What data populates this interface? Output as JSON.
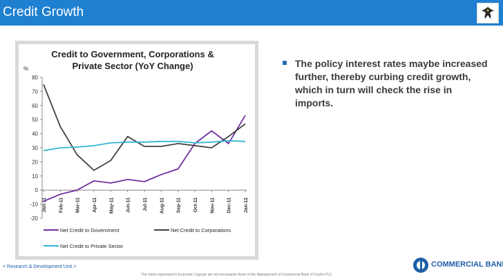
{
  "header": {
    "title": "Credit Growth"
  },
  "bullets": [
    "The policy interest rates maybe increased further, thereby curbing credit growth, which in turn will check the rise in imports."
  ],
  "footer": {
    "unit": "< Research & Development Unit >",
    "disclaimer": "The views expressed in Economic Capsule are not necessarily those of the Management of Commercial Bank of Ceylon PLC",
    "bank_name": "COMMERCIAL BANK"
  },
  "colors": {
    "header_bg": "#1f7fd0",
    "government": "#7030a0",
    "corporations": "#404040",
    "private_sector": "#33b5d1",
    "brand": "#1f5fa8"
  },
  "chart_data": {
    "type": "line",
    "title": "Credit to Government, Corporations & Private Sector (YoY Change)",
    "title_lines": [
      "Credit to Government, Corporations &",
      "Private Sector (YoY Change)"
    ],
    "ylabel": "%",
    "xlabel": "",
    "ylim": [
      -20,
      80
    ],
    "yticks": [
      -20,
      -10,
      0,
      10,
      20,
      30,
      40,
      50,
      60,
      70,
      80
    ],
    "grid": false,
    "legend_position": "bottom",
    "categories": [
      "Jan-11",
      "Feb-11",
      "Mar-11",
      "Apr-11",
      "May-11",
      "Jun-11",
      "Jul-11",
      "Aug-11",
      "Sep-11",
      "Oct-11",
      "Nov-11",
      "Dec-11",
      "Jan-12"
    ],
    "series": [
      {
        "name": "Net Credit to Government",
        "color": "#7030a0",
        "values": [
          -8,
          -3,
          0,
          6.5,
          5,
          7.5,
          6,
          11,
          15,
          33,
          42,
          33,
          53
        ]
      },
      {
        "name": "Net Credit to Corporations",
        "color": "#404040",
        "values": [
          75,
          45,
          25,
          14,
          21,
          38,
          31,
          31,
          33,
          31.5,
          30,
          38,
          47
        ]
      },
      {
        "name": "Net Credit to Private Sector",
        "color": "#33b5d1",
        "values": [
          28,
          30,
          30.5,
          31.5,
          33.5,
          34,
          34,
          34.5,
          34.5,
          33.5,
          34,
          35,
          34.5
        ]
      }
    ]
  }
}
